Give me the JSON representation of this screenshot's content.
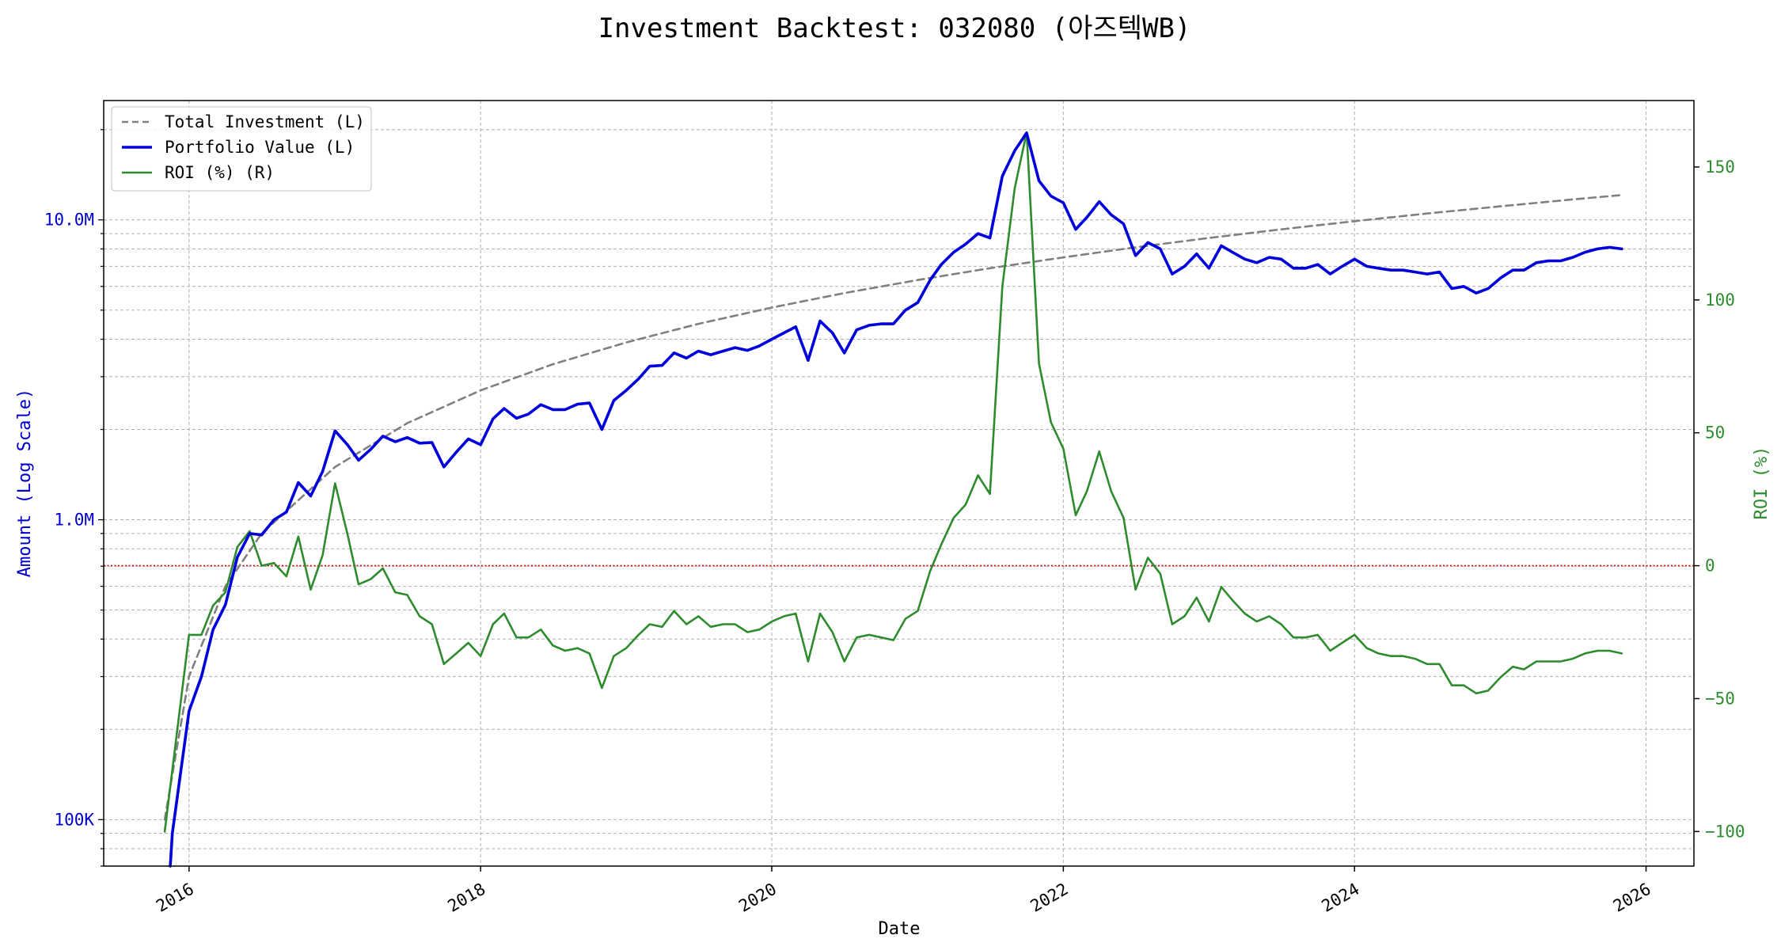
{
  "chart_data": {
    "type": "line",
    "title": "Investment Backtest: 032080 (아즈텍WB)",
    "xlabel": "Date",
    "ylabel_left": "Amount (Log Scale)",
    "ylabel_right": "ROI (%)",
    "left_scale": "log",
    "xlim": [
      "2015-06-01",
      "2026-05-01"
    ],
    "ylim_left": [
      70000,
      25000000
    ],
    "ylim_right": [
      -113,
      175
    ],
    "grid": true,
    "legend_position": "top-left",
    "x_ticks": [
      {
        "date": "2016-01-01",
        "label": "2016"
      },
      {
        "date": "2018-01-01",
        "label": "2018"
      },
      {
        "date": "2020-01-01",
        "label": "2020"
      },
      {
        "date": "2022-01-01",
        "label": "2022"
      },
      {
        "date": "2024-01-01",
        "label": "2024"
      },
      {
        "date": "2026-01-01",
        "label": "2026"
      }
    ],
    "left_ticks": [
      {
        "value": 100000,
        "label": "100K"
      },
      {
        "value": 1000000,
        "label": "1.0M"
      },
      {
        "value": 10000000,
        "label": "10.0M"
      }
    ],
    "right_ticks": [
      {
        "value": -100,
        "label": "−100"
      },
      {
        "value": -50,
        "label": "−50"
      },
      {
        "value": 0,
        "label": "0"
      },
      {
        "value": 50,
        "label": "50"
      },
      {
        "value": 100,
        "label": "100"
      },
      {
        "value": 150,
        "label": "150"
      }
    ],
    "reference_line": {
      "value": 0,
      "axis": "right",
      "color": "#cc0000"
    },
    "series": [
      {
        "name": "Total Investment (L)",
        "axis": "left",
        "color": "#808080",
        "style": "dashed",
        "x": [
          "2015-11-01",
          "2016-01-01",
          "2016-04-01",
          "2016-07-01",
          "2017-01-01",
          "2017-07-01",
          "2018-01-01",
          "2018-07-01",
          "2019-01-01",
          "2019-07-01",
          "2020-01-01",
          "2020-07-01",
          "2021-01-01",
          "2021-07-01",
          "2022-01-01",
          "2022-07-01",
          "2023-01-01",
          "2023-07-01",
          "2024-01-01",
          "2024-07-01",
          "2025-01-01",
          "2025-07-01",
          "2025-11-01"
        ],
        "values": [
          100000,
          300000,
          600000,
          900000,
          1500000,
          2100000,
          2700000,
          3300000,
          3900000,
          4500000,
          5100000,
          5700000,
          6300000,
          6900000,
          7500000,
          8100000,
          8700000,
          9300000,
          9900000,
          10500000,
          11100000,
          11700000,
          12100000
        ]
      },
      {
        "name": "Portfolio Value (L)",
        "axis": "left",
        "color": "#0000dd",
        "style": "solid",
        "x": [
          "2015-11-15",
          "2015-11-20",
          "2016-01-01",
          "2016-02-01",
          "2016-03-01",
          "2016-04-01",
          "2016-05-01",
          "2016-06-01",
          "2016-07-01",
          "2016-08-01",
          "2016-09-01",
          "2016-10-01",
          "2016-11-01",
          "2016-12-01",
          "2017-01-01",
          "2017-02-01",
          "2017-03-01",
          "2017-04-01",
          "2017-05-01",
          "2017-06-01",
          "2017-07-01",
          "2017-08-01",
          "2017-09-01",
          "2017-10-01",
          "2017-11-01",
          "2017-12-01",
          "2018-01-01",
          "2018-02-01",
          "2018-03-01",
          "2018-04-01",
          "2018-05-01",
          "2018-06-01",
          "2018-07-01",
          "2018-08-01",
          "2018-09-01",
          "2018-10-01",
          "2018-11-01",
          "2018-12-01",
          "2019-01-01",
          "2019-02-01",
          "2019-03-01",
          "2019-04-01",
          "2019-05-01",
          "2019-06-01",
          "2019-07-01",
          "2019-08-01",
          "2019-09-01",
          "2019-10-01",
          "2019-11-01",
          "2019-12-01",
          "2020-01-01",
          "2020-02-01",
          "2020-03-01",
          "2020-04-01",
          "2020-05-01",
          "2020-06-01",
          "2020-07-01",
          "2020-08-01",
          "2020-09-01",
          "2020-10-01",
          "2020-11-01",
          "2020-12-01",
          "2021-01-01",
          "2021-02-01",
          "2021-03-01",
          "2021-04-01",
          "2021-05-01",
          "2021-06-01",
          "2021-07-01",
          "2021-08-01",
          "2021-09-01",
          "2021-10-01",
          "2021-11-01",
          "2021-12-01",
          "2022-01-01",
          "2022-02-01",
          "2022-03-01",
          "2022-04-01",
          "2022-05-01",
          "2022-06-01",
          "2022-07-01",
          "2022-08-01",
          "2022-09-01",
          "2022-10-01",
          "2022-11-01",
          "2022-12-01",
          "2023-01-01",
          "2023-02-01",
          "2023-03-01",
          "2023-04-01",
          "2023-05-01",
          "2023-06-01",
          "2023-07-01",
          "2023-08-01",
          "2023-09-01",
          "2023-10-01",
          "2023-11-01",
          "2023-12-01",
          "2024-01-01",
          "2024-02-01",
          "2024-03-01",
          "2024-04-01",
          "2024-05-01",
          "2024-06-01",
          "2024-07-01",
          "2024-08-01",
          "2024-09-01",
          "2024-10-01",
          "2024-11-01",
          "2024-12-01",
          "2025-01-01",
          "2025-02-01",
          "2025-03-01",
          "2025-04-01",
          "2025-05-01",
          "2025-06-01",
          "2025-07-01",
          "2025-08-01",
          "2025-09-01",
          "2025-10-01",
          "2025-11-01"
        ],
        "values": [
          65000,
          90000,
          230000,
          300000,
          430000,
          520000,
          750000,
          900000,
          890000,
          1000000,
          1060000,
          1330000,
          1200000,
          1450000,
          1980000,
          1780000,
          1580000,
          1720000,
          1900000,
          1820000,
          1880000,
          1800000,
          1810000,
          1500000,
          1680000,
          1860000,
          1780000,
          2170000,
          2350000,
          2180000,
          2250000,
          2420000,
          2330000,
          2330000,
          2430000,
          2450000,
          2000000,
          2500000,
          2700000,
          2950000,
          3250000,
          3270000,
          3600000,
          3460000,
          3650000,
          3550000,
          3650000,
          3750000,
          3670000,
          3800000,
          4000000,
          4200000,
          4400000,
          3400000,
          4600000,
          4200000,
          3600000,
          4300000,
          4450000,
          4500000,
          4500000,
          5000000,
          5300000,
          6300000,
          7100000,
          7800000,
          8300000,
          9000000,
          8700000,
          14000000,
          17000000,
          19500000,
          13500000,
          12000000,
          11400000,
          9300000,
          10200000,
          11500000,
          10400000,
          9700000,
          7600000,
          8400000,
          8000000,
          6600000,
          7000000,
          7700000,
          6900000,
          8200000,
          7800000,
          7400000,
          7200000,
          7500000,
          7400000,
          6900000,
          6900000,
          7100000,
          6600000,
          7000000,
          7400000,
          7000000,
          6900000,
          6800000,
          6800000,
          6700000,
          6600000,
          6700000,
          5900000,
          6000000,
          5700000,
          5900000,
          6400000,
          6800000,
          6800000,
          7200000,
          7300000,
          7300000,
          7500000,
          7800000,
          8000000,
          8100000,
          8000000
        ]
      },
      {
        "name": "ROI (%) (R)",
        "axis": "right",
        "color": "#2e8b2e",
        "style": "solid",
        "x": [
          "2015-11-01",
          "2016-01-01",
          "2016-02-01",
          "2016-03-01",
          "2016-04-01",
          "2016-05-01",
          "2016-06-01",
          "2016-07-01",
          "2016-08-01",
          "2016-09-01",
          "2016-10-01",
          "2016-11-01",
          "2016-12-01",
          "2017-01-01",
          "2017-02-01",
          "2017-03-01",
          "2017-04-01",
          "2017-05-01",
          "2017-06-01",
          "2017-07-01",
          "2017-08-01",
          "2017-09-01",
          "2017-10-01",
          "2017-11-01",
          "2017-12-01",
          "2018-01-01",
          "2018-02-01",
          "2018-03-01",
          "2018-04-01",
          "2018-05-01",
          "2018-06-01",
          "2018-07-01",
          "2018-08-01",
          "2018-09-01",
          "2018-10-01",
          "2018-11-01",
          "2018-12-01",
          "2019-01-01",
          "2019-02-01",
          "2019-03-01",
          "2019-04-01",
          "2019-05-01",
          "2019-06-01",
          "2019-07-01",
          "2019-08-01",
          "2019-09-01",
          "2019-10-01",
          "2019-11-01",
          "2019-12-01",
          "2020-01-01",
          "2020-02-01",
          "2020-03-01",
          "2020-04-01",
          "2020-05-01",
          "2020-06-01",
          "2020-07-01",
          "2020-08-01",
          "2020-09-01",
          "2020-10-01",
          "2020-11-01",
          "2020-12-01",
          "2021-01-01",
          "2021-02-01",
          "2021-03-01",
          "2021-04-01",
          "2021-05-01",
          "2021-06-01",
          "2021-07-01",
          "2021-08-01",
          "2021-09-01",
          "2021-10-01",
          "2021-11-01",
          "2021-12-01",
          "2022-01-01",
          "2022-02-01",
          "2022-03-01",
          "2022-04-01",
          "2022-05-01",
          "2022-06-01",
          "2022-07-01",
          "2022-08-01",
          "2022-09-01",
          "2022-10-01",
          "2022-11-01",
          "2022-12-01",
          "2023-01-01",
          "2023-02-01",
          "2023-03-01",
          "2023-04-01",
          "2023-05-01",
          "2023-06-01",
          "2023-07-01",
          "2023-08-01",
          "2023-09-01",
          "2023-10-01",
          "2023-11-01",
          "2023-12-01",
          "2024-01-01",
          "2024-02-01",
          "2024-03-01",
          "2024-04-01",
          "2024-05-01",
          "2024-06-01",
          "2024-07-01",
          "2024-08-01",
          "2024-09-01",
          "2024-10-01",
          "2024-11-01",
          "2024-12-01",
          "2025-01-01",
          "2025-02-01",
          "2025-03-01",
          "2025-04-01",
          "2025-05-01",
          "2025-06-01",
          "2025-07-01",
          "2025-08-01",
          "2025-09-01",
          "2025-10-01",
          "2025-11-01"
        ],
        "values": [
          -100,
          -26,
          -26,
          -15,
          -10,
          7,
          13,
          0,
          1,
          -4,
          11,
          -9,
          4,
          31,
          12,
          -7,
          -5,
          -1,
          -10,
          -11,
          -19,
          -22,
          -37,
          -33,
          -29,
          -34,
          -22,
          -18,
          -27,
          -27,
          -24,
          -30,
          -32,
          -31,
          -33,
          -46,
          -34,
          -31,
          -26,
          -22,
          -23,
          -17,
          -22,
          -19,
          -23,
          -22,
          -22,
          -25,
          -24,
          -21,
          -19,
          -18,
          -36,
          -18,
          -25,
          -36,
          -27,
          -26,
          -27,
          -28,
          -20,
          -17,
          -2,
          8,
          18,
          23,
          34,
          27,
          105,
          142,
          163,
          76,
          54,
          44,
          19,
          28,
          43,
          28,
          18,
          -9,
          3,
          -3,
          -22,
          -19,
          -12,
          -21,
          -8,
          -13,
          -18,
          -21,
          -19,
          -22,
          -27,
          -27,
          -26,
          -32,
          -29,
          -26,
          -31,
          -33,
          -34,
          -34,
          -35,
          -37,
          -37,
          -45,
          -45,
          -48,
          -47,
          -42,
          -38,
          -39,
          -36,
          -36,
          -36,
          -35,
          -33,
          -32,
          -32,
          -33
        ]
      }
    ]
  }
}
